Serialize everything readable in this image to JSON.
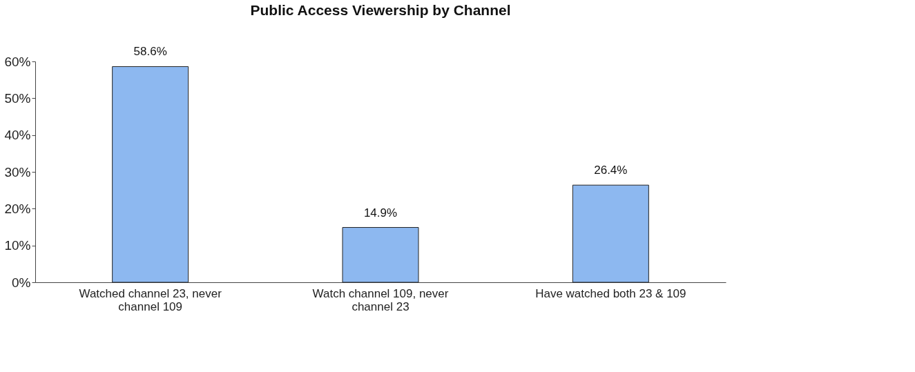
{
  "chart_data": {
    "type": "bar",
    "title": "Public Access Viewership by Channel",
    "categories": [
      "Watched channel 23, never channel 109",
      "Watch channel 109, never channel 23",
      "Have watched both 23 & 109"
    ],
    "values": [
      58.6,
      14.9,
      26.4
    ],
    "color": "#8db8f0",
    "value_labels": [
      "58.6%",
      "14.9%",
      "26.4%"
    ],
    "ylim": [
      0,
      60
    ],
    "yticks": [
      {
        "value": 0,
        "label": "0%"
      },
      {
        "value": 10,
        "label": "10%"
      },
      {
        "value": 20,
        "label": "20%"
      },
      {
        "value": 30,
        "label": "30%"
      },
      {
        "value": 40,
        "label": "40%"
      },
      {
        "value": 50,
        "label": "50%"
      },
      {
        "value": 60,
        "label": "60%"
      }
    ],
    "grid": false
  }
}
